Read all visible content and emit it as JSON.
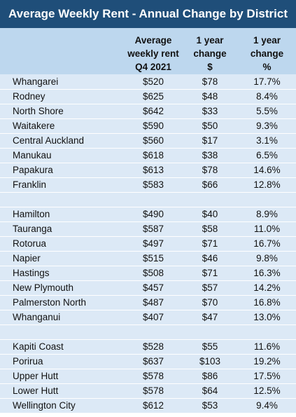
{
  "chart_data": {
    "type": "table",
    "title": "Average Weekly Rent - Annual Change by District",
    "columns": [
      [
        "",
        ""
      ],
      [
        "Average",
        "weekly rent",
        "Q4 2021"
      ],
      [
        "1 year",
        "change",
        "$"
      ],
      [
        "1 year",
        "change",
        "%"
      ]
    ],
    "groups": [
      [
        {
          "district": "Whangarei",
          "rent": "$520",
          "change": "$78",
          "pct": "17.7%"
        },
        {
          "district": "Rodney",
          "rent": "$625",
          "change": "$48",
          "pct": "8.4%"
        },
        {
          "district": "North Shore",
          "rent": "$642",
          "change": "$33",
          "pct": "5.5%"
        },
        {
          "district": "Waitakere",
          "rent": "$590",
          "change": "$50",
          "pct": "9.3%"
        },
        {
          "district": "Central Auckland",
          "rent": "$560",
          "change": "$17",
          "pct": "3.1%"
        },
        {
          "district": "Manukau",
          "rent": "$618",
          "change": "$38",
          "pct": "6.5%"
        },
        {
          "district": "Papakura",
          "rent": "$613",
          "change": "$78",
          "pct": "14.6%"
        },
        {
          "district": "Franklin",
          "rent": "$583",
          "change": "$66",
          "pct": "12.8%"
        }
      ],
      [
        {
          "district": "Hamilton",
          "rent": "$490",
          "change": "$40",
          "pct": "8.9%"
        },
        {
          "district": "Tauranga",
          "rent": "$587",
          "change": "$58",
          "pct": "11.0%"
        },
        {
          "district": "Rotorua",
          "rent": "$497",
          "change": "$71",
          "pct": "16.7%"
        },
        {
          "district": "Napier",
          "rent": "$515",
          "change": "$46",
          "pct": "9.8%"
        },
        {
          "district": "Hastings",
          "rent": "$508",
          "change": "$71",
          "pct": "16.3%"
        },
        {
          "district": "New Plymouth",
          "rent": "$457",
          "change": "$57",
          "pct": "14.2%"
        },
        {
          "district": "Palmerston North",
          "rent": "$487",
          "change": "$70",
          "pct": "16.8%"
        },
        {
          "district": "Whanganui",
          "rent": "$407",
          "change": "$47",
          "pct": "13.0%"
        }
      ],
      [
        {
          "district": "Kapiti Coast",
          "rent": "$528",
          "change": "$55",
          "pct": "11.6%"
        },
        {
          "district": "Porirua",
          "rent": "$637",
          "change": "$103",
          "pct": "19.2%"
        },
        {
          "district": "Upper Hutt",
          "rent": "$578",
          "change": "$86",
          "pct": "17.5%"
        },
        {
          "district": "Lower Hutt",
          "rent": "$578",
          "change": "$64",
          "pct": "12.5%"
        },
        {
          "district": "Wellington City",
          "rent": "$612",
          "change": "$53",
          "pct": "9.4%"
        }
      ]
    ]
  },
  "colors": {
    "title_bg": "#1f4e79",
    "header_bg": "#bdd7ee",
    "row_bg": "#dce9f6",
    "separator": "#ffffff"
  }
}
